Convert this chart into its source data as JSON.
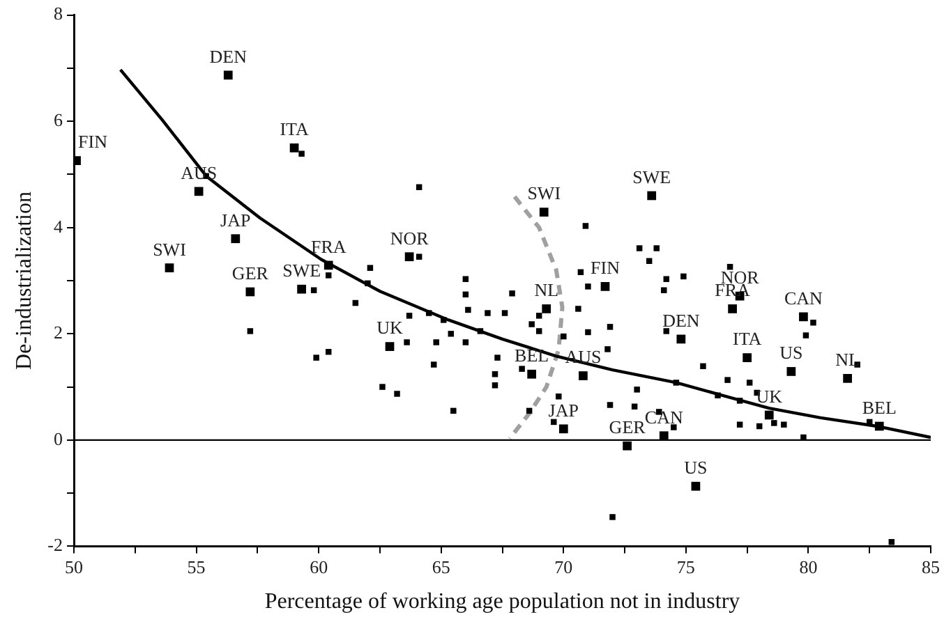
{
  "chart_data": {
    "type": "scatter",
    "xlabel": "Percentage of working age population not in industry",
    "ylabel": "De-industrialization",
    "xlim": [
      50,
      85
    ],
    "ylim": [
      -2,
      8
    ],
    "xticks": [
      50,
      {
        "value": 52.5,
        "label": null
      },
      55,
      {
        "value": 57.5,
        "label": null
      },
      60,
      {
        "value": 62.5,
        "label": null
      },
      65,
      {
        "value": 67.5,
        "label": null
      },
      70,
      {
        "value": 72.5,
        "label": null
      },
      75,
      {
        "value": 77.5,
        "label": null
      },
      80,
      {
        "value": 82.5,
        "label": null
      },
      85
    ],
    "yticks": [
      -2,
      {
        "value": -1,
        "label": null
      },
      0,
      {
        "value": 1,
        "label": null
      },
      2,
      {
        "value": 3,
        "label": null
      },
      4,
      {
        "value": 5,
        "label": null
      },
      6,
      {
        "value": 7,
        "label": null
      },
      8
    ],
    "grid": false,
    "legend": false,
    "marker": "square",
    "series": [
      {
        "type": "scatter",
        "color": "#000000",
        "x": [
          50.1,
          56.3,
          59.0,
          55.1,
          56.6,
          53.9,
          57.2,
          59.3,
          60.4,
          63.7,
          62.9,
          69.2,
          73.6,
          71.7,
          69.3,
          74.8,
          77.2,
          76.9,
          79.8,
          77.5,
          79.3,
          81.6,
          78.4,
          82.9,
          68.7,
          70.8,
          70.0,
          74.1,
          72.6,
          75.4
        ],
        "values": [
          5.26,
          6.87,
          5.5,
          4.68,
          3.79,
          3.24,
          2.79,
          2.84,
          3.29,
          3.45,
          1.76,
          4.29,
          4.6,
          2.89,
          2.47,
          1.9,
          2.71,
          2.47,
          2.32,
          1.55,
          1.29,
          1.16,
          0.47,
          0.26,
          1.24,
          1.21,
          0.21,
          0.08,
          -0.11,
          -0.87
        ]
      },
      {
        "type": "scatter",
        "color": "#000000",
        "x": [
          59.3,
          55.4,
          64.1,
          64.1,
          62.1,
          60.4,
          59.8,
          61.5,
          66.0,
          66.0,
          66.1,
          66.9,
          63.7,
          64.5,
          57.2,
          59.9,
          60.4,
          62.6,
          63.2,
          63.6,
          64.8,
          64.7,
          65.1,
          65.4,
          65.5,
          66.0,
          66.6,
          62.0,
          67.6,
          67.9,
          69.0,
          68.7,
          69.0,
          70.0,
          70.9,
          70.6,
          70.7,
          71.0,
          71.0,
          71.9,
          71.8,
          73.1,
          73.8,
          73.5,
          74.2,
          74.9,
          74.1,
          74.2,
          76.8,
          80.2,
          79.9,
          75.7,
          67.3,
          67.2,
          67.2,
          68.3,
          82.0,
          76.7,
          77.6,
          77.9,
          74.6,
          73.0,
          76.3,
          77.2,
          69.8,
          68.6,
          71.9,
          72.9,
          73.9,
          69.6,
          74.5,
          77.2,
          78.0,
          78.6,
          79.0,
          79.8,
          82.5,
          72.0,
          83.4
        ],
        "values": [
          5.39,
          4.97,
          4.76,
          3.45,
          3.24,
          3.1,
          2.82,
          2.58,
          3.03,
          2.74,
          2.45,
          2.39,
          2.34,
          2.39,
          2.05,
          1.55,
          1.66,
          1.0,
          0.87,
          1.84,
          1.84,
          1.42,
          2.26,
          2.0,
          0.55,
          1.84,
          2.05,
          2.95,
          2.39,
          2.76,
          2.34,
          2.18,
          2.05,
          1.95,
          4.03,
          2.47,
          3.16,
          2.89,
          2.03,
          2.13,
          1.71,
          3.61,
          3.61,
          3.37,
          3.03,
          3.08,
          2.82,
          2.05,
          3.26,
          2.21,
          1.97,
          1.39,
          1.55,
          1.24,
          1.03,
          1.34,
          1.42,
          1.13,
          1.08,
          0.89,
          1.08,
          0.95,
          0.84,
          0.74,
          0.82,
          0.55,
          0.66,
          0.63,
          0.53,
          0.34,
          0.24,
          0.29,
          0.26,
          0.32,
          0.29,
          0.05,
          0.34,
          -1.45,
          -1.92
        ]
      },
      {
        "type": "line",
        "color": "#000000",
        "marker": "none",
        "line_style": "solid",
        "x": [
          51.9,
          53.6,
          55.4,
          57.6,
          60.1,
          62.5,
          65.3,
          67.5,
          69.7,
          72.0,
          74.6,
          76.5,
          78.4,
          80.5,
          82.8,
          85
        ],
        "values": [
          6.97,
          6.03,
          4.97,
          4.18,
          3.4,
          2.8,
          2.26,
          1.9,
          1.58,
          1.32,
          1.08,
          0.84,
          0.6,
          0.42,
          0.26,
          0.05
        ]
      },
      {
        "type": "line",
        "color": "#a0a0a0",
        "marker": "none",
        "line_style": "dashed",
        "x": [
          68.0,
          69.0,
          69.7,
          69.95,
          69.8,
          69.3,
          68.6,
          67.8
        ],
        "values": [
          4.58,
          4.0,
          3.2,
          2.5,
          1.7,
          1.0,
          0.5,
          0.03
        ]
      }
    ],
    "ref_lines": [
      {
        "axis": "y",
        "value": 0,
        "color": "#000000"
      }
    ],
    "annotations": [
      {
        "text": "FIN",
        "x": 50.1,
        "y": 5.26
      },
      {
        "text": "DEN",
        "x": 56.3,
        "y": 6.87
      },
      {
        "text": "ITA",
        "x": 59.0,
        "y": 5.5
      },
      {
        "text": "AUS",
        "x": 55.1,
        "y": 4.68
      },
      {
        "text": "JAP",
        "x": 56.6,
        "y": 3.79
      },
      {
        "text": "SWI",
        "x": 53.9,
        "y": 3.24
      },
      {
        "text": "GER",
        "x": 57.2,
        "y": 2.79
      },
      {
        "text": "SWE",
        "x": 59.3,
        "y": 2.84
      },
      {
        "text": "FRA",
        "x": 60.4,
        "y": 3.29
      },
      {
        "text": "NOR",
        "x": 63.7,
        "y": 3.45
      },
      {
        "text": "UK",
        "x": 62.9,
        "y": 1.76
      },
      {
        "text": "SWI",
        "x": 69.2,
        "y": 4.29
      },
      {
        "text": "SWE",
        "x": 73.6,
        "y": 4.6
      },
      {
        "text": "FIN",
        "x": 71.7,
        "y": 2.89
      },
      {
        "text": "NL",
        "x": 69.3,
        "y": 2.47
      },
      {
        "text": "DEN",
        "x": 74.8,
        "y": 1.9
      },
      {
        "text": "NOR",
        "x": 77.2,
        "y": 2.71
      },
      {
        "text": "FRA",
        "x": 76.9,
        "y": 2.47
      },
      {
        "text": "CAN",
        "x": 79.8,
        "y": 2.32
      },
      {
        "text": "ITA",
        "x": 77.5,
        "y": 1.55
      },
      {
        "text": "US",
        "x": 79.3,
        "y": 1.29
      },
      {
        "text": "NL",
        "x": 81.6,
        "y": 1.16
      },
      {
        "text": "UK",
        "x": 78.4,
        "y": 0.47
      },
      {
        "text": "BEL",
        "x": 82.9,
        "y": 0.26
      },
      {
        "text": "BEL",
        "x": 68.7,
        "y": 1.24
      },
      {
        "text": "AUS",
        "x": 70.8,
        "y": 1.21
      },
      {
        "text": "JAP",
        "x": 70.0,
        "y": 0.21
      },
      {
        "text": "CAN",
        "x": 74.1,
        "y": 0.08
      },
      {
        "text": "GER",
        "x": 72.6,
        "y": -0.11
      },
      {
        "text": "US",
        "x": 75.4,
        "y": -0.87
      }
    ]
  }
}
